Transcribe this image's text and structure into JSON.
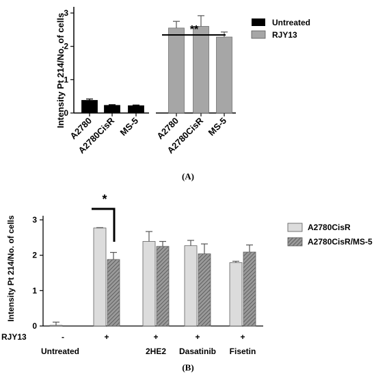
{
  "chart_data": [
    {
      "type": "bar",
      "panel_label": "(A)",
      "ylabel": "Intensity Pt 214/No. of cells",
      "ylim": [
        0,
        3
      ],
      "yticks": [
        0,
        1,
        2,
        3
      ],
      "categories": [
        "A2780",
        "A2780CisR",
        "MS-5"
      ],
      "series": [
        {
          "name": "Untreated",
          "color": "#000000",
          "values": [
            0.38,
            0.23,
            0.22
          ],
          "errors": [
            0.04,
            0.02,
            0.02
          ]
        },
        {
          "name": "RJY13",
          "color": "#a6a6a6",
          "values": [
            2.55,
            2.6,
            2.28
          ],
          "errors": [
            0.2,
            0.32,
            0.15
          ]
        }
      ],
      "annotations": [
        {
          "text": "**",
          "spans": "RJY13 group"
        }
      ],
      "legend": "top-right"
    },
    {
      "type": "bar",
      "panel_label": "(B)",
      "ylabel": "Intensity Pt 214/No. of cells",
      "ylim": [
        0,
        3
      ],
      "yticks": [
        0,
        1,
        2,
        3
      ],
      "row_label": "RJY13",
      "signs": [
        "-",
        "+",
        "+",
        "+",
        "+"
      ],
      "categories": [
        "Untreated",
        "",
        "2HE2",
        "Dasatinib",
        "Fisetin"
      ],
      "series": [
        {
          "name": "A2780CisR",
          "color": "#dcdcdc",
          "values": [
            0.02,
            2.77,
            2.39,
            2.27,
            1.79
          ],
          "errors": [
            0.09,
            0.01,
            0.28,
            0.15,
            0.04
          ]
        },
        {
          "name": "A2780CisR/MS-5",
          "color": "#8a8a8a",
          "pattern": "hatched",
          "values": [
            0.0,
            1.88,
            2.25,
            2.04,
            2.09
          ],
          "errors": [
            0.0,
            0.2,
            0.14,
            0.28,
            0.2
          ]
        }
      ],
      "annotations": [
        {
          "text": "*",
          "spans": "second group"
        }
      ],
      "legend": "top-right"
    }
  ]
}
